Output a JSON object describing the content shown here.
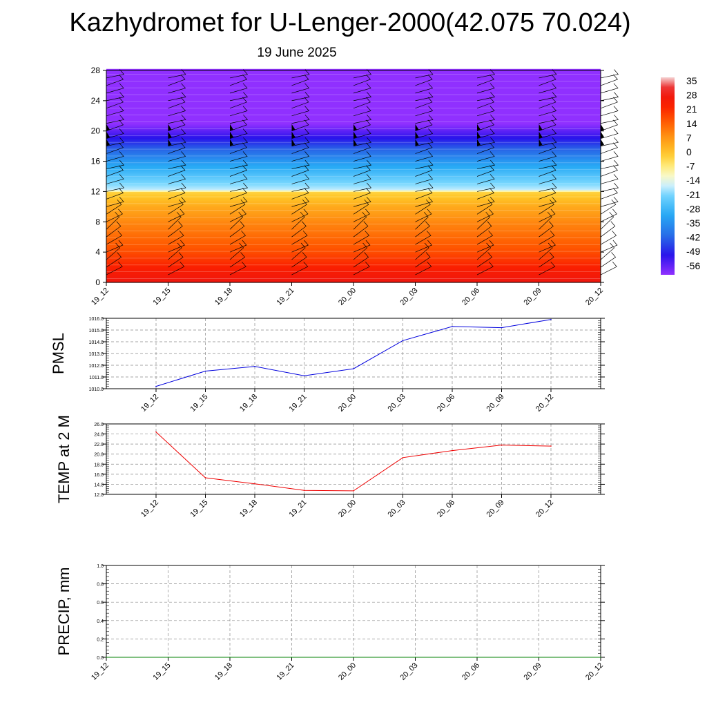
{
  "header": {
    "title": "Kazhydromet for U-Lenger-2000(42.075 70.024)",
    "subtitle": "19 June 2025"
  },
  "colors": {
    "pmsl_line": "#0000dd",
    "temp_line": "#ee0000",
    "precip_line": "#008000",
    "gridline": "#888888"
  },
  "chart_data": [
    {
      "type": "heatmap",
      "title": "",
      "xlabel": "",
      "ylabel": "",
      "x_categories": [
        "19_12",
        "19_15",
        "19_18",
        "19_21",
        "20_00",
        "20_03",
        "20_06",
        "20_09",
        "20_12"
      ],
      "yticks": [
        0,
        4,
        8,
        12,
        16,
        20,
        24,
        28
      ],
      "ylim": [
        0,
        28
      ],
      "colorbar_labels": [
        "35",
        "28",
        "21",
        "14",
        "7",
        "0",
        "-7",
        "-14",
        "-21",
        "-28",
        "-35",
        "-42",
        "-49",
        "-56"
      ],
      "colorbar_range": [
        -60,
        38
      ],
      "temperature_profile": {
        "heights": [
          0,
          2,
          4,
          6,
          8,
          10,
          12,
          12.2,
          14,
          16,
          18,
          20,
          21,
          24,
          28
        ],
        "values": [
          30,
          24,
          18,
          14,
          10,
          5,
          -2,
          -16,
          -24,
          -33,
          -44,
          -55,
          -60,
          -60,
          -60
        ]
      },
      "wind_barbs": "wind barbs at every 3-hour column, heights 1-27 km"
    },
    {
      "type": "line",
      "ylabel": "PMSL",
      "categories": [
        "19_12",
        "19_15",
        "19_18",
        "19_21",
        "20_00",
        "20_03",
        "20_06",
        "20_09",
        "20_12"
      ],
      "values": [
        1010.2,
        1011.5,
        1011.9,
        1011.1,
        1011.7,
        1014.1,
        1015.3,
        1015.2,
        1015.9
      ],
      "ylim": [
        1010.0,
        1016.0
      ],
      "yticks": [
        "1010.0",
        "1011.0",
        "1012.0",
        "1013.0",
        "1014.0",
        "1015.0",
        "1016.0"
      ],
      "grid": true
    },
    {
      "type": "line",
      "ylabel": "TEMP at 2 M",
      "categories": [
        "19_12",
        "19_15",
        "19_18",
        "19_21",
        "20_00",
        "20_03",
        "20_06",
        "20_09",
        "20_12"
      ],
      "values": [
        24.4,
        15.3,
        14.1,
        12.8,
        12.7,
        19.3,
        20.7,
        21.8,
        21.6
      ],
      "ylim": [
        12.0,
        26.0
      ],
      "yticks": [
        "12.0",
        "14.0",
        "16.0",
        "18.0",
        "20.0",
        "22.0",
        "24.0",
        "26.0"
      ],
      "grid": true
    },
    {
      "type": "line",
      "ylabel": "PRECIP, mm",
      "categories": [
        "19_12",
        "19_15",
        "19_18",
        "19_21",
        "20_00",
        "20_03",
        "20_06",
        "20_09",
        "20_12"
      ],
      "values": [
        0,
        0,
        0,
        0,
        0,
        0,
        0,
        0,
        0
      ],
      "ylim": [
        0.0,
        1.0
      ],
      "yticks": [
        "0.0",
        "0.2",
        "0.4",
        "0.6",
        "0.8",
        "1.0"
      ],
      "grid": true
    }
  ]
}
